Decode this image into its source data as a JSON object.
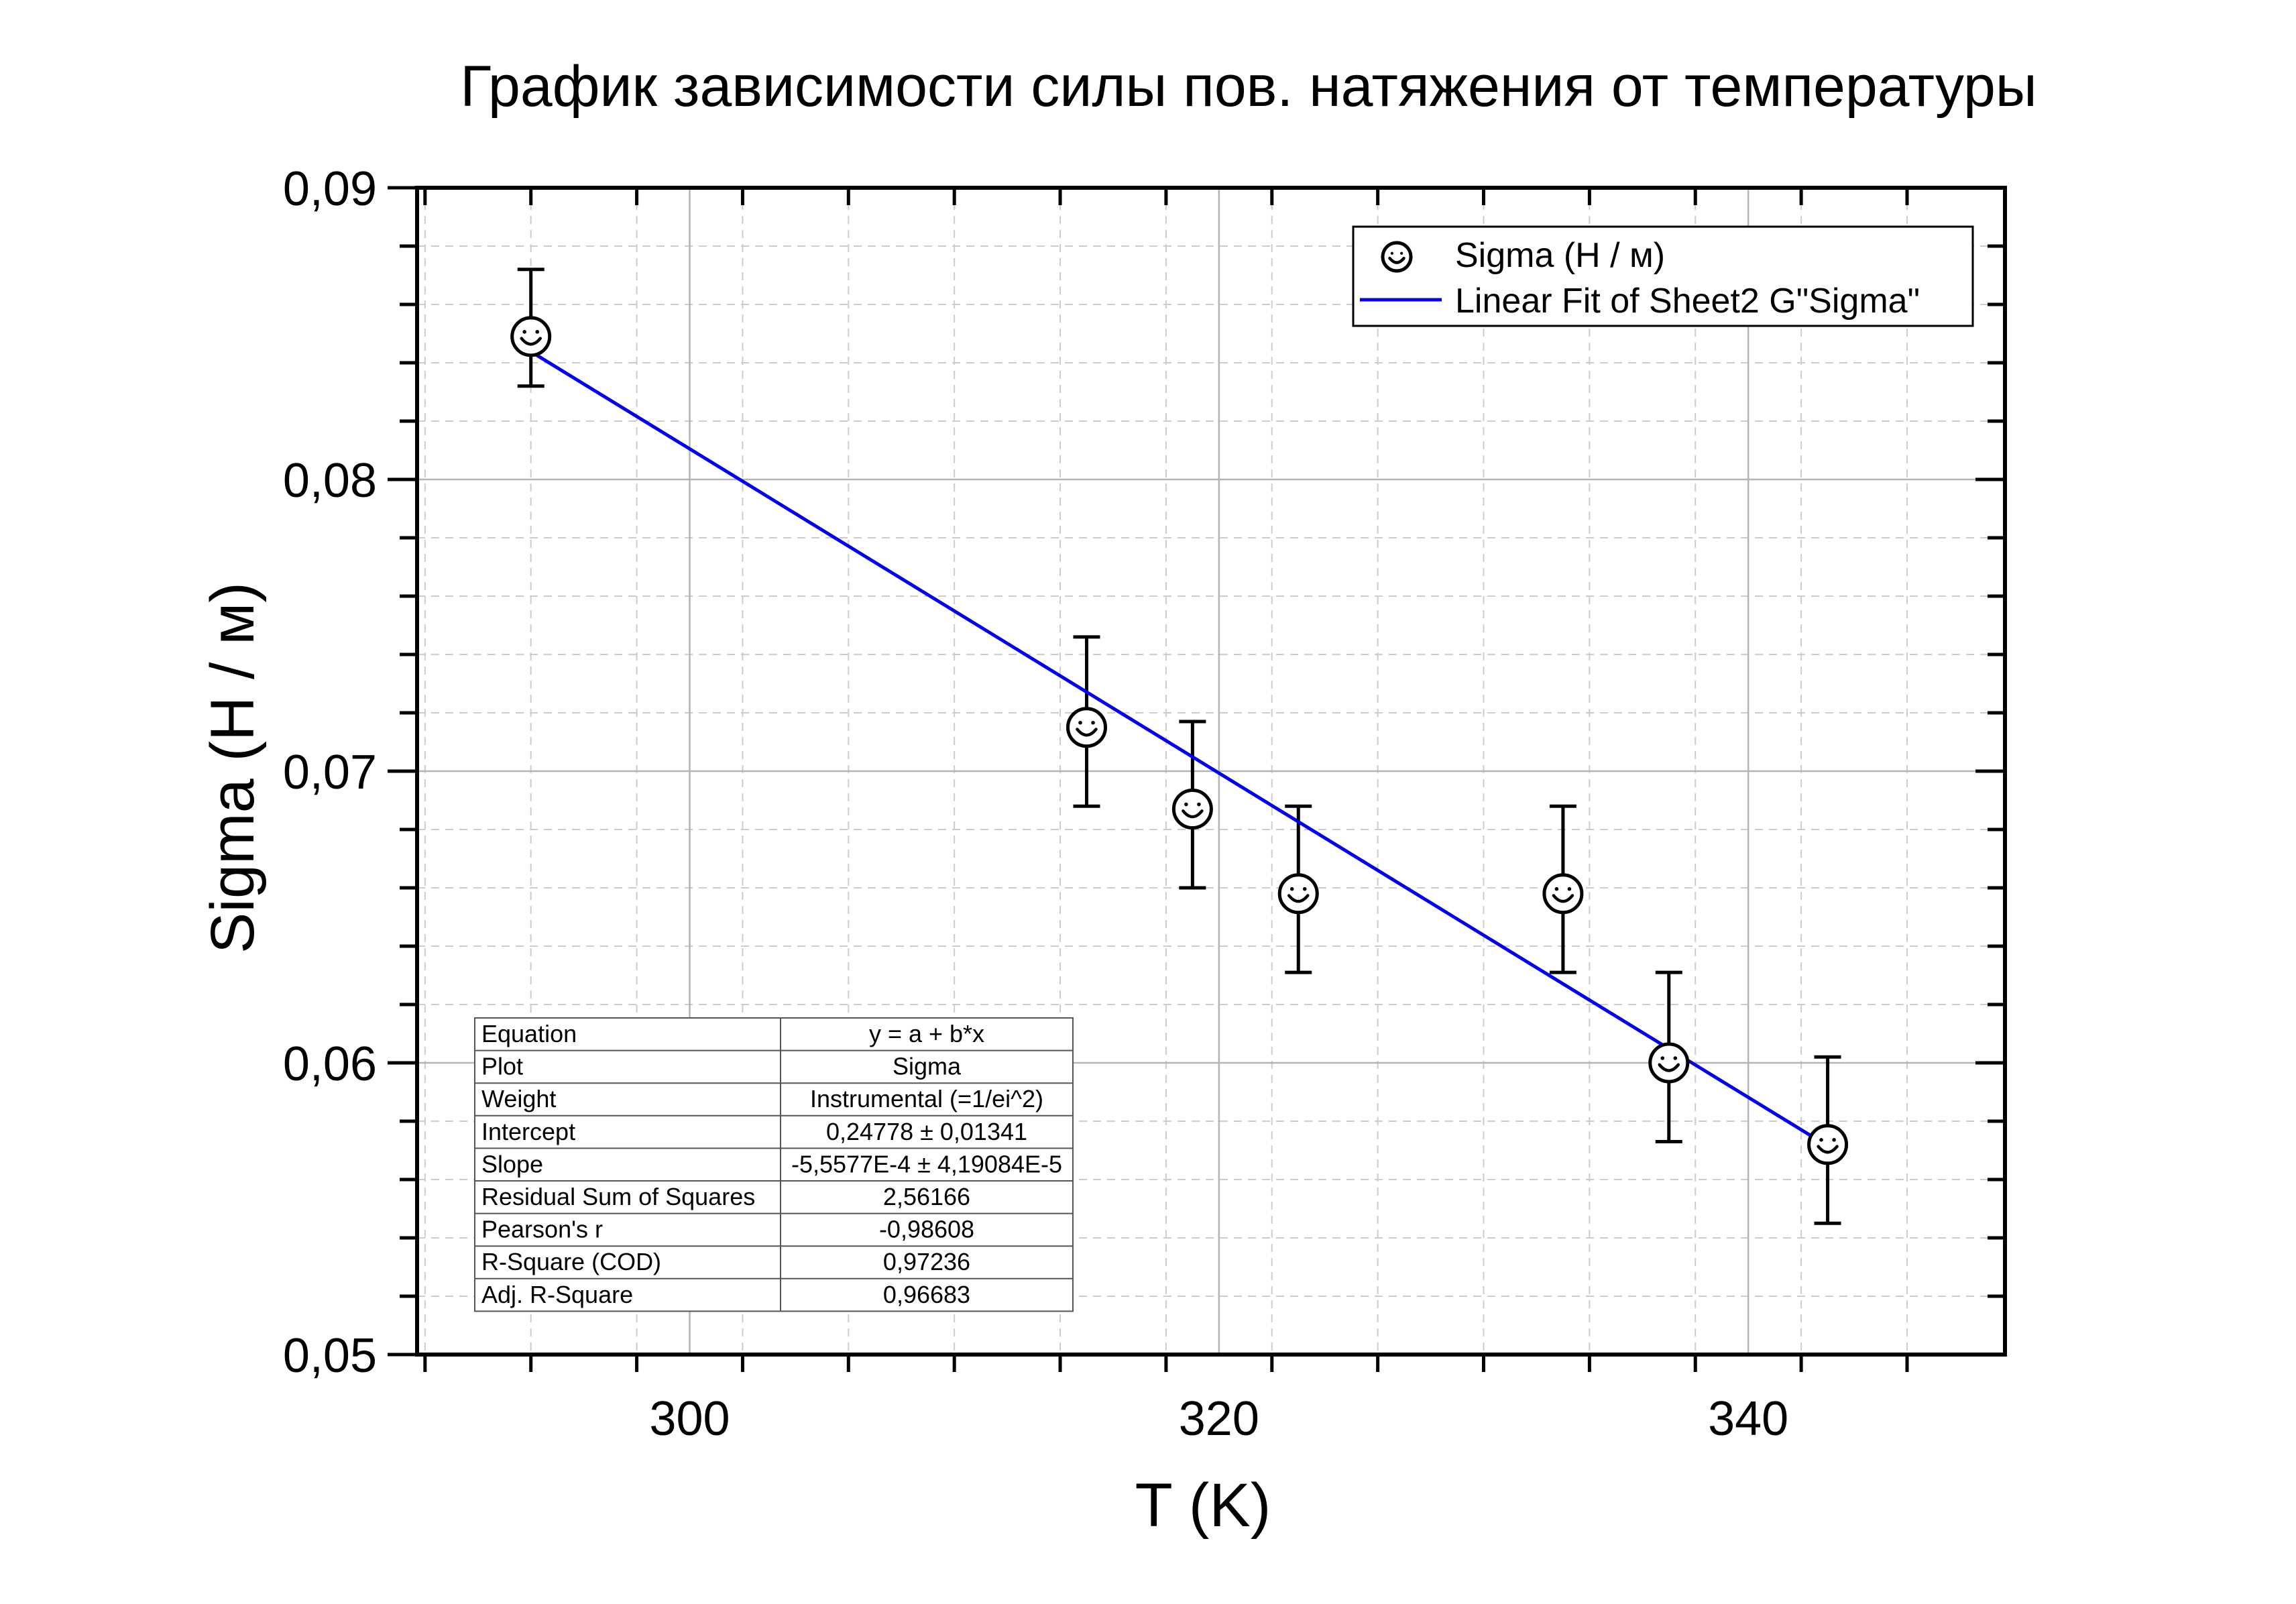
{
  "chart_data": {
    "type": "scatter",
    "title": "График зависимости силы пов. натяжения от температуры",
    "xlabel": "T (K)",
    "ylabel": "Sigma (Н / м)",
    "xlim": [
      289.7,
      349.7
    ],
    "ylim": [
      0.05,
      0.09
    ],
    "x_ticks": [
      300,
      320,
      340
    ],
    "x_tick_labels": [
      "300",
      "320",
      "340"
    ],
    "y_ticks": [
      0.05,
      0.06,
      0.07,
      0.08,
      0.09
    ],
    "y_tick_labels": [
      "0,05",
      "0,06",
      "0,07",
      "0,08",
      "0,09"
    ],
    "grid": true,
    "legend_position": "top-right",
    "series": [
      {
        "name": "Sigma (Н / м)",
        "marker": "smiley",
        "color": "#000000",
        "x": [
          294,
          315,
          319,
          323,
          333,
          337,
          343
        ],
        "y": [
          0.0849,
          0.0715,
          0.0687,
          0.0658,
          0.0658,
          0.06,
          0.0572
        ],
        "error_plus": [
          0.0023,
          0.0031,
          0.003,
          0.003,
          0.003,
          0.0031,
          0.003
        ],
        "error_minus": [
          0.0017,
          0.0027,
          0.0027,
          0.0027,
          0.0027,
          0.0027,
          0.0027
        ]
      },
      {
        "name": "Linear Fit of Sheet2 G\"Sigma\"",
        "type": "line",
        "color": "#0000ee",
        "intercept": 0.24778,
        "slope": -0.00055577,
        "x_range": [
          294,
          343
        ]
      }
    ],
    "stats_table": [
      [
        "Equation",
        "y = a + b*x"
      ],
      [
        "Plot",
        "Sigma"
      ],
      [
        "Weight",
        "Instrumental (=1/ei^2)"
      ],
      [
        "Intercept",
        "0,24778 ± 0,01341"
      ],
      [
        "Slope",
        "-5,5577E-4 ± 4,19084E-5"
      ],
      [
        "Residual Sum of Squares",
        "2,56166"
      ],
      [
        "Pearson's r",
        "-0,98608"
      ],
      [
        "R-Square (COD)",
        "0,97236"
      ],
      [
        "Adj. R-Square",
        "0,96683"
      ]
    ]
  }
}
